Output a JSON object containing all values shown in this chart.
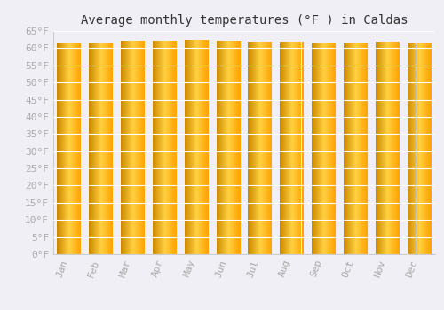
{
  "title": "Average monthly temperatures (°F ) in Caldas",
  "months": [
    "Jan",
    "Feb",
    "Mar",
    "Apr",
    "May",
    "Jun",
    "Jul",
    "Aug",
    "Sep",
    "Oct",
    "Nov",
    "Dec"
  ],
  "values": [
    61.5,
    61.7,
    62.2,
    62.2,
    62.3,
    62.2,
    62.0,
    61.9,
    61.7,
    61.3,
    62.0,
    61.5
  ],
  "ylim": [
    0,
    65
  ],
  "yticks": [
    0,
    5,
    10,
    15,
    20,
    25,
    30,
    35,
    40,
    45,
    50,
    55,
    60,
    65
  ],
  "bar_color_left": "#E8900A",
  "bar_color_mid": "#FFC926",
  "bar_color_right": "#FFB800",
  "background_color": "#f0eff5",
  "plot_bg_color": "#f0eff5",
  "grid_color": "#ffffff",
  "title_fontsize": 10,
  "tick_fontsize": 8,
  "tick_color": "#aaaaaa",
  "spine_color": "#cccccc",
  "font_family": "monospace"
}
